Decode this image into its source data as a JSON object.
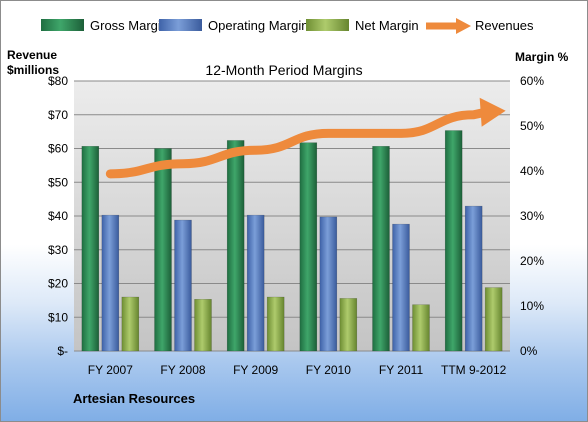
{
  "chart_data": {
    "type": "bar",
    "title": "12-Month Period Margins",
    "ylabel_left": [
      "Revenue",
      "$millions"
    ],
    "ylabel_right": "Margin %",
    "footer": "Artesian Resources",
    "categories": [
      "FY 2007",
      "FY 2008",
      "FY 2009",
      "FY 2010",
      "FY 2011",
      "TTM 9-2012"
    ],
    "y_left": {
      "min": 0,
      "max": 80,
      "ticks": [
        "$-",
        "$10",
        "$20",
        "$30",
        "$40",
        "$50",
        "$60",
        "$70",
        "$80"
      ]
    },
    "y_right": {
      "min": 0,
      "max": 60,
      "ticks": [
        "0%",
        "10%",
        "20%",
        "30%",
        "40%",
        "50%",
        "60%"
      ]
    },
    "grid": true,
    "legend_position": "top",
    "series": [
      {
        "name": "Gross Margin",
        "axis": "right",
        "mark": "bar",
        "color": "#2e8b57",
        "values": [
          45.5,
          45.0,
          46.8,
          46.3,
          45.5,
          49.0
        ]
      },
      {
        "name": "Operating Margin",
        "axis": "right",
        "mark": "bar",
        "color": "#5b80c8",
        "values": [
          30.2,
          29.1,
          30.2,
          29.8,
          28.2,
          32.2
        ]
      },
      {
        "name": "Net Margin",
        "axis": "right",
        "mark": "bar",
        "color": "#8fb04c",
        "values": [
          12.0,
          11.5,
          12.0,
          11.7,
          10.3,
          14.1
        ]
      },
      {
        "name": "Revenues",
        "axis": "left",
        "mark": "line",
        "color": "#ee8a3c",
        "values": [
          52.5,
          55.5,
          59.5,
          64.5,
          64.5,
          70.0
        ]
      }
    ]
  }
}
